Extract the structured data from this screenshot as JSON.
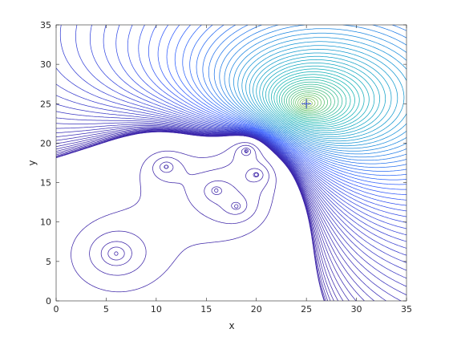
{
  "chart_data": {
    "type": "contour",
    "xlabel": "x",
    "ylabel": "y",
    "xlim": [
      0,
      35
    ],
    "ylim": [
      0,
      35
    ],
    "xticks": [
      0,
      5,
      10,
      15,
      20,
      25,
      30,
      35
    ],
    "yticks": [
      0,
      5,
      10,
      15,
      20,
      25,
      30,
      35
    ],
    "grid": false,
    "colormap": "parula",
    "colormap_stops": [
      "#3e26a8",
      "#2f5aff",
      "#1496d4",
      "#0fb5b0",
      "#5fc160",
      "#cdbb2d",
      "#f9d726"
    ],
    "main_source": {
      "x": 25,
      "y": 25
    },
    "marker": {
      "x": 25,
      "y": 25,
      "symbol": "+"
    },
    "wells": [
      {
        "x": 6,
        "y": 6
      },
      {
        "x": 11,
        "y": 17
      },
      {
        "x": 16,
        "y": 14
      },
      {
        "x": 18,
        "y": 12
      },
      {
        "x": 19,
        "y": 19
      },
      {
        "x": 20,
        "y": 16
      }
    ]
  }
}
